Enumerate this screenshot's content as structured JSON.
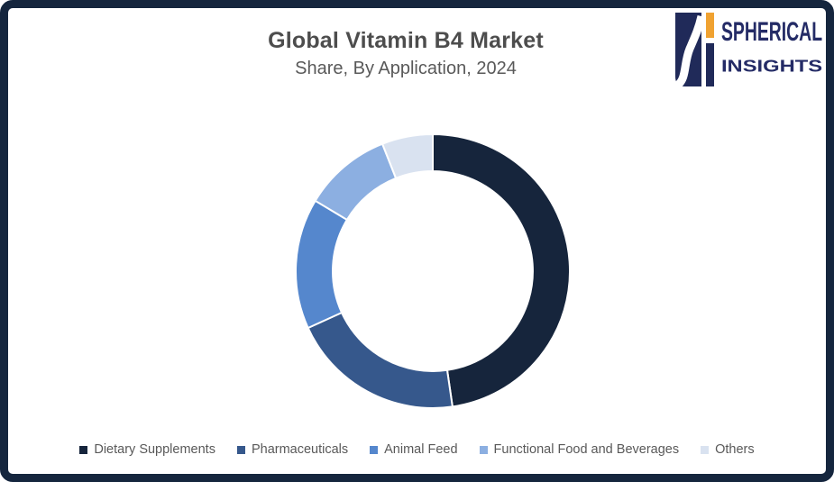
{
  "page": {
    "title": "Global Vitamin B4 Market",
    "subtitle": "Share, By Application, 2024"
  },
  "logo": {
    "name_top": "SPHERICAL",
    "name_bottom": "INSIGHTS",
    "text_color": "#242B66",
    "mark_navy": "#202A59",
    "mark_orange": "#F0A231"
  },
  "colors": {
    "frame": "#15263E",
    "title_text": "#4D4D4D",
    "subtitle_text": "#595959",
    "legend_text": "#595959"
  },
  "chart_data": {
    "type": "pie",
    "subtype": "donut",
    "title": "Global Vitamin B4 Market",
    "subtitle": "Share, By Application, 2024",
    "categories": [
      "Dietary Supplements",
      "Pharmaceuticals",
      "Animal Feed",
      "Functional Food and Beverages",
      "Others"
    ],
    "values": [
      47.7,
      20.5,
      15.4,
      10.4,
      6.0
    ],
    "colors": [
      "#16253C",
      "#36588C",
      "#5587CD",
      "#8CAFE1",
      "#D9E2F0"
    ],
    "start_angle_deg": 0,
    "direction": "clockwise",
    "inner_radius_ratio": 0.73,
    "segment_border_color": "#FFFFFF",
    "legend_position": "bottom",
    "data_labels": false
  }
}
